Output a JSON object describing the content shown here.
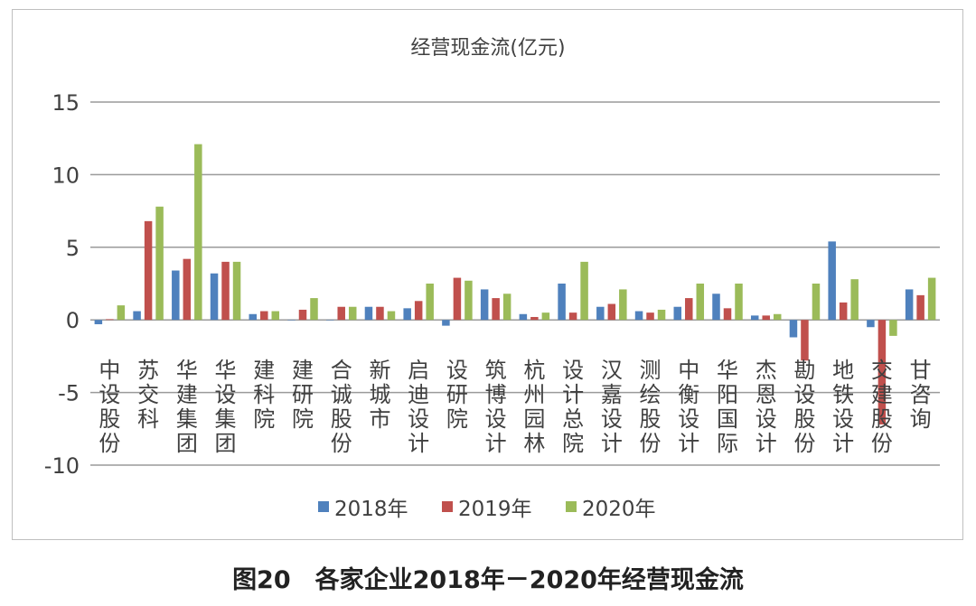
{
  "caption": "图20　各家企业2018年－2020年经营现金流",
  "chart_data": {
    "type": "bar",
    "title": "经营现金流(亿元)",
    "xlabel": "",
    "ylabel": "",
    "ylim": [
      -10,
      15
    ],
    "yticks": [
      15,
      10,
      5,
      0,
      -5,
      -10
    ],
    "grid": true,
    "legend_position": "bottom",
    "categories": [
      "中设股份",
      "苏交科",
      "华建集团",
      "华设集团",
      "建科院",
      "建研院",
      "合诚股份",
      "新城市",
      "启迪设计",
      "设研院",
      "筑博设计",
      "杭州园林",
      "设计总院",
      "汉嘉设计",
      "测绘股份",
      "中衡设计",
      "华阳国际",
      "杰恩设计",
      "勘设股份",
      "地铁设计",
      "交建股份",
      "甘咨询"
    ],
    "series": [
      {
        "name": "2018年",
        "color": "#4f81bd",
        "values": [
          -0.3,
          0.6,
          3.4,
          3.2,
          0.4,
          0.0,
          0.0,
          0.9,
          0.8,
          -0.4,
          2.1,
          0.4,
          2.5,
          0.9,
          0.6,
          0.9,
          1.8,
          0.3,
          -1.2,
          5.4,
          -0.5,
          2.1
        ]
      },
      {
        "name": "2019年",
        "color": "#c0504d",
        "values": [
          0.05,
          6.8,
          4.2,
          4.0,
          0.6,
          0.7,
          0.9,
          0.9,
          1.3,
          2.9,
          1.5,
          0.2,
          0.5,
          1.1,
          0.5,
          1.5,
          0.8,
          0.3,
          -2.8,
          1.2,
          -7.2,
          1.7
        ]
      },
      {
        "name": "2020年",
        "color": "#9bbb59",
        "values": [
          1.0,
          7.8,
          12.1,
          4.0,
          0.6,
          1.5,
          0.9,
          0.6,
          2.5,
          2.7,
          1.8,
          0.5,
          4.0,
          2.1,
          0.7,
          2.5,
          2.5,
          0.4,
          2.5,
          2.8,
          -1.1,
          2.9
        ]
      }
    ]
  }
}
